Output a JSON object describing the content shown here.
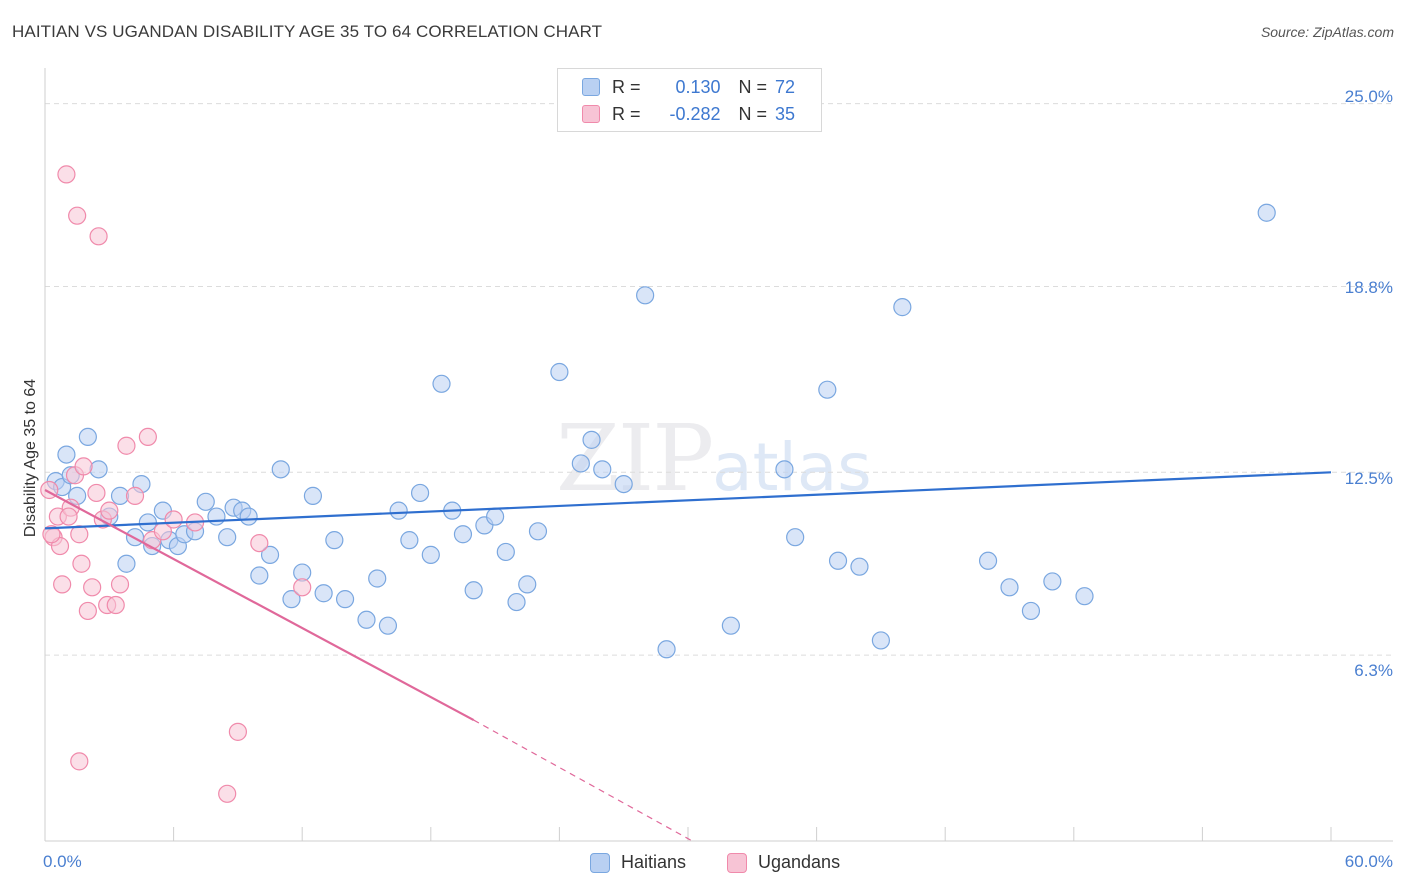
{
  "chart_data": {
    "type": "scatter",
    "title": "HAITIAN VS UGANDAN DISABILITY AGE 35 TO 64 CORRELATION CHART",
    "source": "Source: ZipAtlas.com",
    "watermark": {
      "zip": "ZIP",
      "atlas": "atlas"
    },
    "xlabel": "",
    "ylabel": "Disability Age 35 to 64",
    "xlim": [
      0,
      60
    ],
    "ylim": [
      0,
      25.8
    ],
    "x_tick_labels": [
      "0.0%",
      "60.0%"
    ],
    "y_ticks": [
      {
        "value": 25.0,
        "label": "25.0%"
      },
      {
        "value": 18.8,
        "label": "18.8%"
      },
      {
        "value": 12.5,
        "label": "12.5%"
      },
      {
        "value": 6.3,
        "label": "6.3%"
      }
    ],
    "legend": [
      {
        "series": "Haitians",
        "r_label": "R =",
        "r_value": "0.130",
        "n_label": "N =",
        "n_value": "72"
      },
      {
        "series": "Ugandans",
        "r_label": "R =",
        "r_value": "-0.282",
        "n_label": "N =",
        "n_value": "35"
      }
    ],
    "series": [
      {
        "name": "Haitians",
        "color": "#7aa7e0",
        "fill": "#b9d0f2",
        "line_color": "#2f6fcf",
        "trend": {
          "x": [
            0,
            60
          ],
          "y": [
            10.6,
            12.5
          ]
        },
        "points": [
          [
            0.5,
            12.2
          ],
          [
            0.8,
            12.0
          ],
          [
            1.0,
            13.1
          ],
          [
            1.2,
            12.4
          ],
          [
            1.5,
            11.7
          ],
          [
            2.0,
            13.7
          ],
          [
            2.5,
            12.6
          ],
          [
            3.0,
            11.0
          ],
          [
            3.5,
            11.7
          ],
          [
            3.8,
            9.4
          ],
          [
            4.2,
            10.3
          ],
          [
            4.5,
            12.1
          ],
          [
            4.8,
            10.8
          ],
          [
            5.0,
            10.0
          ],
          [
            5.5,
            11.2
          ],
          [
            5.8,
            10.2
          ],
          [
            6.2,
            10.0
          ],
          [
            6.5,
            10.4
          ],
          [
            7.0,
            10.5
          ],
          [
            7.5,
            11.5
          ],
          [
            8.0,
            11.0
          ],
          [
            8.5,
            10.3
          ],
          [
            8.8,
            11.3
          ],
          [
            9.2,
            11.2
          ],
          [
            9.5,
            11.0
          ],
          [
            10.0,
            9.0
          ],
          [
            10.5,
            9.7
          ],
          [
            11.0,
            12.6
          ],
          [
            11.5,
            8.2
          ],
          [
            12.0,
            9.1
          ],
          [
            12.5,
            11.7
          ],
          [
            13.0,
            8.4
          ],
          [
            13.5,
            10.2
          ],
          [
            14.0,
            8.2
          ],
          [
            15.0,
            7.5
          ],
          [
            15.5,
            8.9
          ],
          [
            16.0,
            7.3
          ],
          [
            16.5,
            11.2
          ],
          [
            17.0,
            10.2
          ],
          [
            17.5,
            11.8
          ],
          [
            18.0,
            9.7
          ],
          [
            18.5,
            15.5
          ],
          [
            19.0,
            11.2
          ],
          [
            19.5,
            10.4
          ],
          [
            20.0,
            8.5
          ],
          [
            20.5,
            10.7
          ],
          [
            21.0,
            11.0
          ],
          [
            21.5,
            9.8
          ],
          [
            22.0,
            8.1
          ],
          [
            22.5,
            8.7
          ],
          [
            23.0,
            10.5
          ],
          [
            24.0,
            15.9
          ],
          [
            25.0,
            12.8
          ],
          [
            25.5,
            13.6
          ],
          [
            26.0,
            12.6
          ],
          [
            27.0,
            12.1
          ],
          [
            28.0,
            18.5
          ],
          [
            29.0,
            6.5
          ],
          [
            32.0,
            7.3
          ],
          [
            34.5,
            12.6
          ],
          [
            35.0,
            10.3
          ],
          [
            36.5,
            15.3
          ],
          [
            37.0,
            9.5
          ],
          [
            38.0,
            9.3
          ],
          [
            39.0,
            6.8
          ],
          [
            40.0,
            18.1
          ],
          [
            44.0,
            9.5
          ],
          [
            45.0,
            8.6
          ],
          [
            46.0,
            7.8
          ],
          [
            47.0,
            8.8
          ],
          [
            48.5,
            8.3
          ],
          [
            57.0,
            21.3
          ]
        ]
      },
      {
        "name": "Ugandans",
        "color": "#f08aab",
        "fill": "#f7c4d5",
        "line_color": "#e0689a",
        "trend": {
          "x": [
            0,
            20
          ],
          "y": [
            11.9,
            4.1
          ]
        },
        "trend_dashed": {
          "x": [
            20,
            30.2
          ],
          "y": [
            4.1,
            0.0
          ]
        },
        "points": [
          [
            0.2,
            11.9
          ],
          [
            0.4,
            10.3
          ],
          [
            0.6,
            11.0
          ],
          [
            0.7,
            10.0
          ],
          [
            0.8,
            8.7
          ],
          [
            1.0,
            22.6
          ],
          [
            1.2,
            11.3
          ],
          [
            1.4,
            12.4
          ],
          [
            1.5,
            21.2
          ],
          [
            1.6,
            10.4
          ],
          [
            1.7,
            9.4
          ],
          [
            1.8,
            12.7
          ],
          [
            2.0,
            7.8
          ],
          [
            2.2,
            8.6
          ],
          [
            2.4,
            11.8
          ],
          [
            2.5,
            20.5
          ],
          [
            2.7,
            10.9
          ],
          [
            2.9,
            8.0
          ],
          [
            3.0,
            11.2
          ],
          [
            3.3,
            8.0
          ],
          [
            3.5,
            8.7
          ],
          [
            3.8,
            13.4
          ],
          [
            4.2,
            11.7
          ],
          [
            4.8,
            13.7
          ],
          [
            5.0,
            10.2
          ],
          [
            5.5,
            10.5
          ],
          [
            6.0,
            10.9
          ],
          [
            7.0,
            10.8
          ],
          [
            8.5,
            1.6
          ],
          [
            9.0,
            3.7
          ],
          [
            10.0,
            10.1
          ],
          [
            12.0,
            8.6
          ],
          [
            1.6,
            2.7
          ],
          [
            0.3,
            10.4
          ],
          [
            1.1,
            11.0
          ]
        ]
      }
    ]
  }
}
